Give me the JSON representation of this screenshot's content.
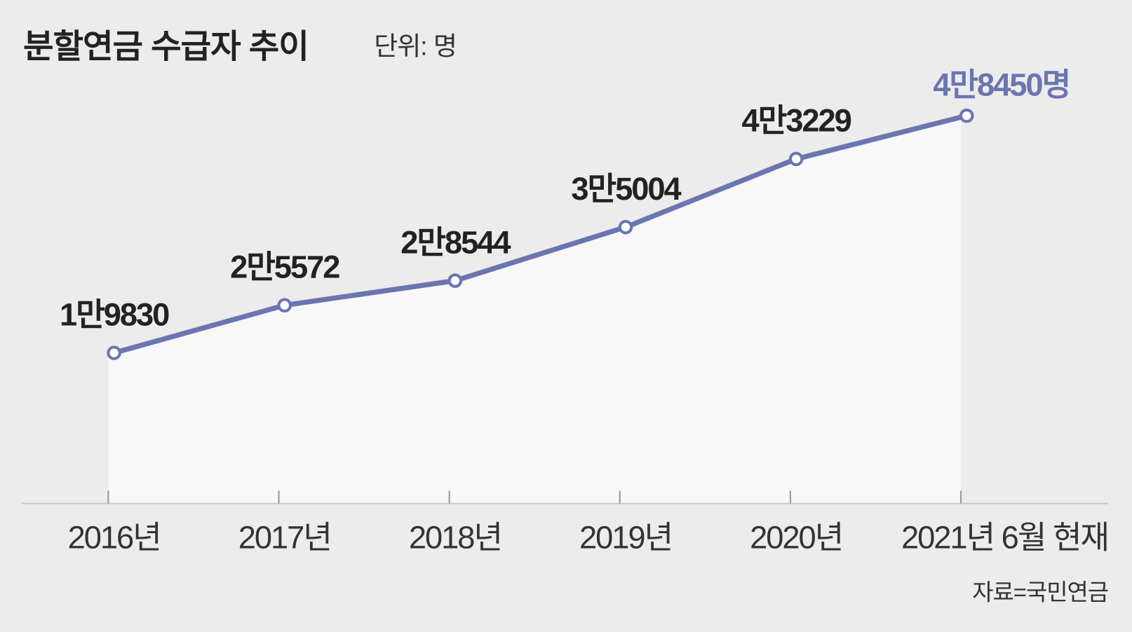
{
  "chart_data": {
    "type": "line",
    "title": "분할연금 수급자 추이",
    "subtitle": "단위: 명",
    "source": "자료=국민연금",
    "categories": [
      "2016년",
      "2017년",
      "2018년",
      "2019년",
      "2020년",
      "2021년 6월 현재"
    ],
    "values": [
      19830,
      25572,
      28544,
      35004,
      43229,
      48450
    ],
    "value_labels": [
      "1만9830",
      "2만5572",
      "2만8544",
      "3만5004",
      "4만3229",
      "4만8450명"
    ],
    "color": "#6b75b0",
    "ylim": [
      0,
      55000
    ]
  }
}
